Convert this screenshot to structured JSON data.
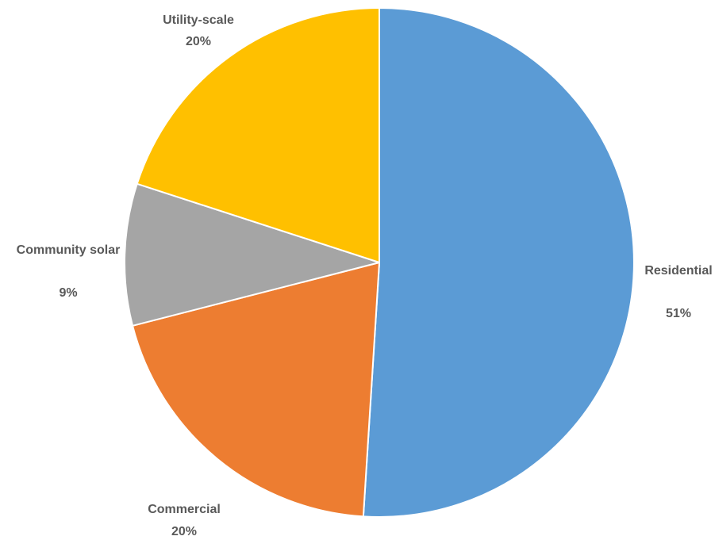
{
  "chart_data": {
    "type": "pie",
    "title": "",
    "start_angle_deg": 0,
    "direction": "clockwise",
    "slices": [
      {
        "label": "Residential",
        "value": 51,
        "percent_label": "51%",
        "color": "#5B9BD5"
      },
      {
        "label": "Commercial",
        "value": 20,
        "percent_label": "20%",
        "color": "#ED7D31"
      },
      {
        "label": "Community solar",
        "value": 9,
        "percent_label": "9%",
        "color": "#A5A5A5"
      },
      {
        "label": "Utility-scale",
        "value": 20,
        "percent_label": "20%",
        "color": "#FFC000"
      }
    ]
  }
}
